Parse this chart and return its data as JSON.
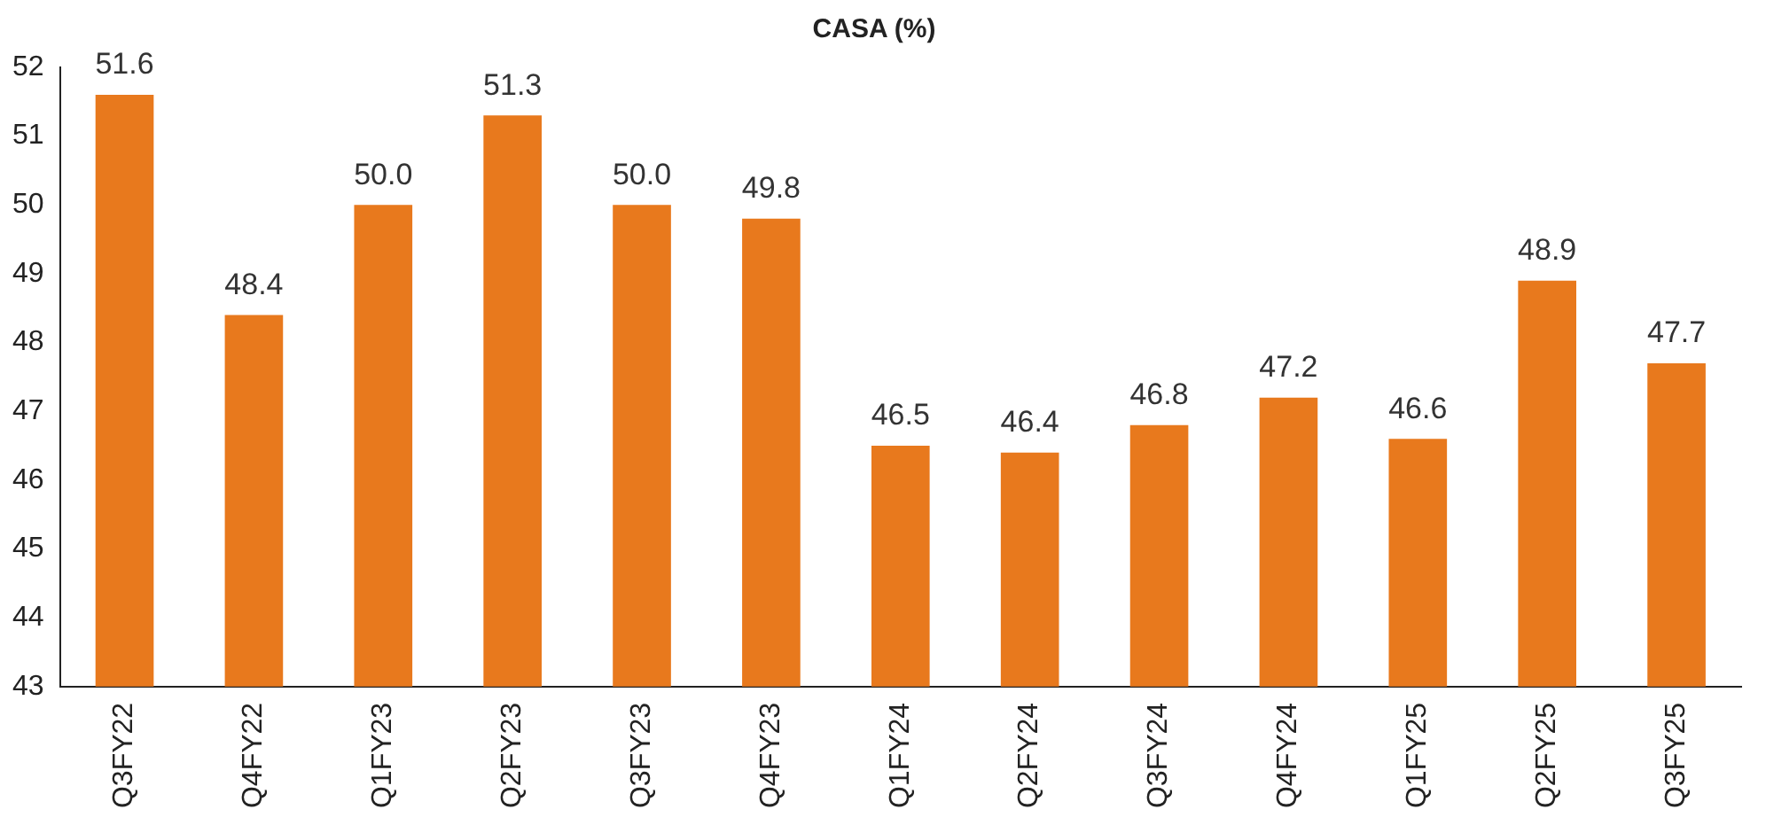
{
  "chart_data": {
    "type": "bar",
    "title": "CASA (%)",
    "categories": [
      "Q3FY22",
      "Q4FY22",
      "Q1FY23",
      "Q2FY23",
      "Q3FY23",
      "Q4FY23",
      "Q1FY24",
      "Q2FY24",
      "Q3FY24",
      "Q4FY24",
      "Q1FY25",
      "Q2FY25",
      "Q3FY25"
    ],
    "values": [
      51.6,
      48.4,
      50.0,
      51.3,
      50.0,
      49.8,
      46.5,
      46.4,
      46.8,
      47.2,
      46.6,
      48.9,
      47.7
    ],
    "value_labels": [
      "51.6",
      "48.4",
      "50.0",
      "51.3",
      "50.0",
      "49.8",
      "46.5",
      "46.4",
      "46.8",
      "47.2",
      "46.6",
      "48.9",
      "47.7"
    ],
    "color": "#e8791d",
    "ylim": [
      43,
      52
    ],
    "yticks": [
      43,
      44,
      45,
      46,
      47,
      48,
      49,
      50,
      51,
      52
    ],
    "grid": false,
    "legend": false
  }
}
